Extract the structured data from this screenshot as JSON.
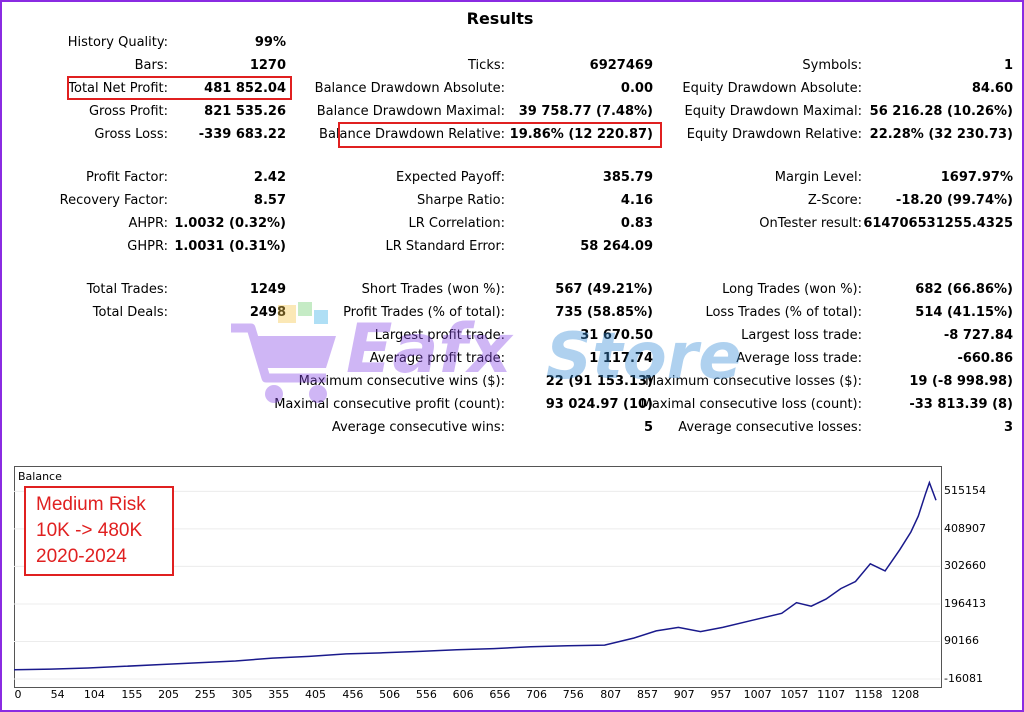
{
  "title": "Results",
  "stats_col1": [
    {
      "label": "History Quality:",
      "value": "99%"
    },
    {
      "label": "Bars:",
      "value": "1270"
    },
    {
      "label": "Total Net Profit:",
      "value": "481 852.04"
    },
    {
      "label": "Gross Profit:",
      "value": "821 535.26"
    },
    {
      "label": "Gross Loss:",
      "value": "-339 683.22"
    },
    {
      "label": "Profit Factor:",
      "value": "2.42"
    },
    {
      "label": "Recovery Factor:",
      "value": "8.57"
    },
    {
      "label": "AHPR:",
      "value": "1.0032 (0.32%)"
    },
    {
      "label": "GHPR:",
      "value": "1.0031 (0.31%)"
    },
    {
      "label": "Total Trades:",
      "value": "1249"
    },
    {
      "label": "Total Deals:",
      "value": "2498"
    }
  ],
  "stats_col2": [
    {
      "label": "Ticks:",
      "value": "6927469"
    },
    {
      "label": "Balance Drawdown Absolute:",
      "value": "0.00"
    },
    {
      "label": "Balance Drawdown Maximal:",
      "value": "39 758.77 (7.48%)"
    },
    {
      "label": "Balance Drawdown Relative:",
      "value": "19.86% (12 220.87)"
    },
    {
      "label": "Expected Payoff:",
      "value": "385.79"
    },
    {
      "label": "Sharpe Ratio:",
      "value": "4.16"
    },
    {
      "label": "LR Correlation:",
      "value": "0.83"
    },
    {
      "label": "LR Standard Error:",
      "value": "58 264.09"
    },
    {
      "label": "Short Trades (won %):",
      "value": "567 (49.21%)"
    },
    {
      "label": "Profit Trades (% of total):",
      "value": "735 (58.85%)"
    },
    {
      "label": "Largest profit trade:",
      "value": "31 670.50"
    },
    {
      "label": "Average profit trade:",
      "value": "1 117.74"
    },
    {
      "label": "Maximum consecutive wins ($):",
      "value": "22 (91 153.13)"
    },
    {
      "label": "Maximal consecutive profit (count):",
      "value": "93 024.97 (10)"
    },
    {
      "label": "Average consecutive wins:",
      "value": "5"
    }
  ],
  "stats_col3": [
    {
      "label": "Symbols:",
      "value": "1"
    },
    {
      "label": "Equity Drawdown Absolute:",
      "value": "84.60"
    },
    {
      "label": "Equity Drawdown Maximal:",
      "value": "56 216.28 (10.26%)"
    },
    {
      "label": "Equity Drawdown Relative:",
      "value": "22.28% (32 230.73)"
    },
    {
      "label": "Margin Level:",
      "value": "1697.97%"
    },
    {
      "label": "Z-Score:",
      "value": "-18.20 (99.74%)"
    },
    {
      "label": "OnTester result:",
      "value": "614706531255.4325"
    },
    {
      "label": "Long Trades (won %):",
      "value": "682 (66.86%)"
    },
    {
      "label": "Loss Trades (% of total):",
      "value": "514 (41.15%)"
    },
    {
      "label": "Largest loss trade:",
      "value": "-8 727.84"
    },
    {
      "label": "Average loss trade:",
      "value": "-660.86"
    },
    {
      "label": "Maximum consecutive losses ($):",
      "value": "19 (-8 998.98)"
    },
    {
      "label": "Maximal consecutive loss (count):",
      "value": "-33 813.39 (8)"
    },
    {
      "label": "Average consecutive losses:",
      "value": "3"
    }
  ],
  "watermark": {
    "brand_a": "Eafx",
    "brand_b": "Store"
  },
  "note": {
    "line1": "Medium Risk",
    "line2": "10K -> 480K",
    "line3": "2020-2024"
  },
  "colors": {
    "line": "#1a1a8c",
    "highlight": "#e02020",
    "frame": "#8a2be2"
  },
  "chart_data": {
    "type": "line",
    "title": "Balance",
    "x_ticks": [
      0,
      54,
      104,
      155,
      205,
      255,
      305,
      355,
      405,
      456,
      506,
      556,
      606,
      656,
      706,
      756,
      807,
      857,
      907,
      957,
      1007,
      1057,
      1107,
      1158,
      1208
    ],
    "y_ticks": [
      -16081,
      90166,
      196413,
      302660,
      408907,
      515154
    ],
    "xlim": [
      0,
      1249
    ],
    "ylim": [
      -16081,
      570000
    ],
    "series": [
      {
        "x": [
          0,
          50,
          100,
          150,
          200,
          250,
          300,
          350,
          400,
          450,
          500,
          550,
          600,
          650,
          700,
          750,
          800,
          840,
          870,
          900,
          930,
          960,
          1000,
          1040,
          1060,
          1080,
          1100,
          1120,
          1140,
          1160,
          1180,
          1200,
          1215,
          1225,
          1235,
          1240,
          1249
        ],
        "y": [
          10000,
          12000,
          15000,
          20000,
          25000,
          30000,
          35000,
          43000,
          48000,
          55000,
          58000,
          62000,
          67000,
          70000,
          75000,
          78000,
          80000,
          100000,
          120000,
          130000,
          118000,
          130000,
          150000,
          170000,
          200000,
          190000,
          210000,
          240000,
          260000,
          310000,
          290000,
          350000,
          400000,
          445000,
          510000,
          540000,
          490000
        ]
      }
    ]
  }
}
